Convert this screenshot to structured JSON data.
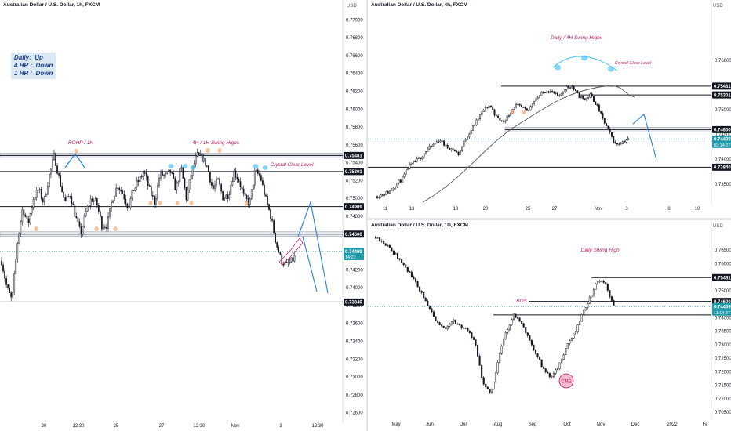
{
  "colors": {
    "candle": "#131722",
    "level": "#131722",
    "annotation_red": "#c2185b",
    "projection": "#2a7fd4",
    "ma": "#555555",
    "highlight_blue": "#4fc3f7",
    "highlight_orange": "#f5a66b",
    "current_price_bg": "#1e9aa8",
    "bias_bg": "#dbe9f5",
    "cme_fill": "#f8bbd0"
  },
  "panels": [
    {
      "id": "p1",
      "title": "Australian Dollar / U.S. Dollar, 1h, FXCM",
      "bias_lines": [
        "Daily:  Up",
        "4 HR :  Down",
        "1 HR :  Down"
      ],
      "annotations": [
        "ROHP / 1H",
        "4H / 1H Swing Highs",
        "Crystal Clear Level"
      ],
      "price_labels": [
        {
          "text": "0.75481",
          "y": 0.75481,
          "style": "dark"
        },
        {
          "text": "0.75301",
          "y": 0.75301,
          "style": "dark"
        },
        {
          "text": "0.74909",
          "y": 0.74909,
          "style": "dark"
        },
        {
          "text": "0.74600",
          "y": 0.746,
          "style": "dark"
        },
        {
          "text": "0.74409",
          "sub": "14:27",
          "y": 0.74409,
          "style": "current"
        },
        {
          "text": "0.73840",
          "y": 0.7384,
          "style": "dark"
        }
      ],
      "chart_data": {
        "type": "candlestick",
        "ylim": [
          0.725,
          0.771
        ],
        "y_ticks": [
          0.77,
          0.768,
          0.766,
          0.764,
          0.762,
          0.76,
          0.758,
          0.756,
          0.754,
          0.752,
          0.75,
          0.748,
          0.746,
          0.744,
          0.742,
          0.74,
          0.738,
          0.736,
          0.734,
          0.732,
          0.73,
          0.728,
          0.726
        ],
        "x_ticks": [
          "20",
          "12:30",
          "25",
          "27",
          "12:30",
          "Nov",
          "3",
          "12:30"
        ],
        "levels": [
          0.75481,
          0.75301,
          0.74909,
          0.746,
          0.7384
        ],
        "series": [
          {
            "name": "price path",
            "values": [
              0.743,
              0.74,
              0.7385,
              0.745,
              0.749,
              0.747,
              0.75,
              0.751,
              0.7495,
              0.7525,
              0.7548,
              0.752,
              0.7495,
              0.7505,
              0.748,
              0.746,
              0.7485,
              0.75,
              0.7495,
              0.747,
              0.747,
              0.75,
              0.7515,
              0.7505,
              0.749,
              0.751,
              0.752,
              0.753,
              0.751,
              0.7495,
              0.7528,
              0.7525,
              0.753,
              0.751,
              0.7535,
              0.75,
              0.753,
              0.7548,
              0.7545,
              0.7535,
              0.751,
              0.752,
              0.75,
              0.7505,
              0.753,
              0.752,
              0.75,
              0.7495,
              0.753,
              0.7525,
              0.75,
              0.748,
              0.745,
              0.743,
              0.7425,
              0.743,
              0.7438,
              0.7441
            ]
          }
        ]
      }
    },
    {
      "id": "p2",
      "title": "Australian Dollar / U.S. Dollar, 4h, FXCM",
      "annotations": [
        "Daily / 4H Swing Highs",
        "Crystal Clear Level"
      ],
      "price_labels": [
        {
          "text": "0.75481",
          "y": 0.75481,
          "style": "dark"
        },
        {
          "text": "0.75301",
          "y": 0.75301,
          "style": "dark"
        },
        {
          "text": "0.74600",
          "y": 0.746,
          "style": "dark"
        },
        {
          "text": "0.74409",
          "sub": "03:14:27",
          "y": 0.74409,
          "style": "current"
        },
        {
          "text": "0.73840",
          "y": 0.7384,
          "style": "dark"
        }
      ],
      "chart_data": {
        "type": "candlestick",
        "ylim": [
          0.731,
          0.77
        ],
        "y_ticks": [
          0.76,
          0.755,
          0.75,
          0.745,
          0.74,
          0.735
        ],
        "x_ticks": [
          "11",
          "13",
          "18",
          "20",
          "25",
          "27",
          "Nov",
          "3",
          "8",
          "10"
        ],
        "levels": [
          0.75481,
          0.75301,
          0.746,
          0.7384
        ],
        "series": [
          {
            "name": "price path",
            "values": [
              0.7325,
              0.733,
              0.7335,
              0.735,
              0.736,
              0.7385,
              0.7395,
              0.7405,
              0.742,
              0.743,
              0.744,
              0.7425,
              0.742,
              0.741,
              0.744,
              0.746,
              0.748,
              0.75,
              0.751,
              0.7485,
              0.7475,
              0.749,
              0.751,
              0.7505,
              0.7495,
              0.752,
              0.753,
              0.754,
              0.7535,
              0.7525,
              0.7545,
              0.7548,
              0.753,
              0.752,
              0.753,
              0.751,
              0.748,
              0.7455,
              0.743,
              0.7435,
              0.7441
            ]
          }
        ]
      }
    },
    {
      "id": "p3",
      "title": "Australian Dollar / U.S. Dollar, 1D, FXCM",
      "annotations": [
        "Daily Swing High",
        "BOS",
        "CME"
      ],
      "price_labels": [
        {
          "text": "0.75481",
          "y": 0.75481,
          "style": "dark"
        },
        {
          "text": "0.74600",
          "y": 0.746,
          "style": "dark"
        },
        {
          "text": "0.74409",
          "sub": "11:14:27",
          "y": 0.74409,
          "style": "current"
        }
      ],
      "chart_data": {
        "type": "candlestick",
        "ylim": [
          0.703,
          0.772
        ],
        "y_ticks": [
          0.765,
          0.76,
          0.755,
          0.75,
          0.745,
          0.74,
          0.735,
          0.73,
          0.725,
          0.72,
          0.715,
          0.71,
          0.705
        ],
        "x_ticks": [
          "May",
          "Jun",
          "Jul",
          "Aug",
          "Sep",
          "Oct",
          "Nov",
          "Dec",
          "2022",
          "Fe"
        ],
        "levels": [
          0.75481,
          0.746,
          0.741
        ],
        "series": [
          {
            "name": "price path",
            "values": [
              0.77,
              0.768,
              0.765,
              0.762,
              0.758,
              0.754,
              0.749,
              0.743,
              0.738,
              0.736,
              0.739,
              0.737,
              0.735,
              0.73,
              0.715,
              0.712,
              0.725,
              0.735,
              0.741,
              0.738,
              0.732,
              0.726,
              0.72,
              0.718,
              0.723,
              0.73,
              0.735,
              0.742,
              0.748,
              0.754,
              0.752,
              0.744
            ]
          }
        ]
      }
    }
  ]
}
